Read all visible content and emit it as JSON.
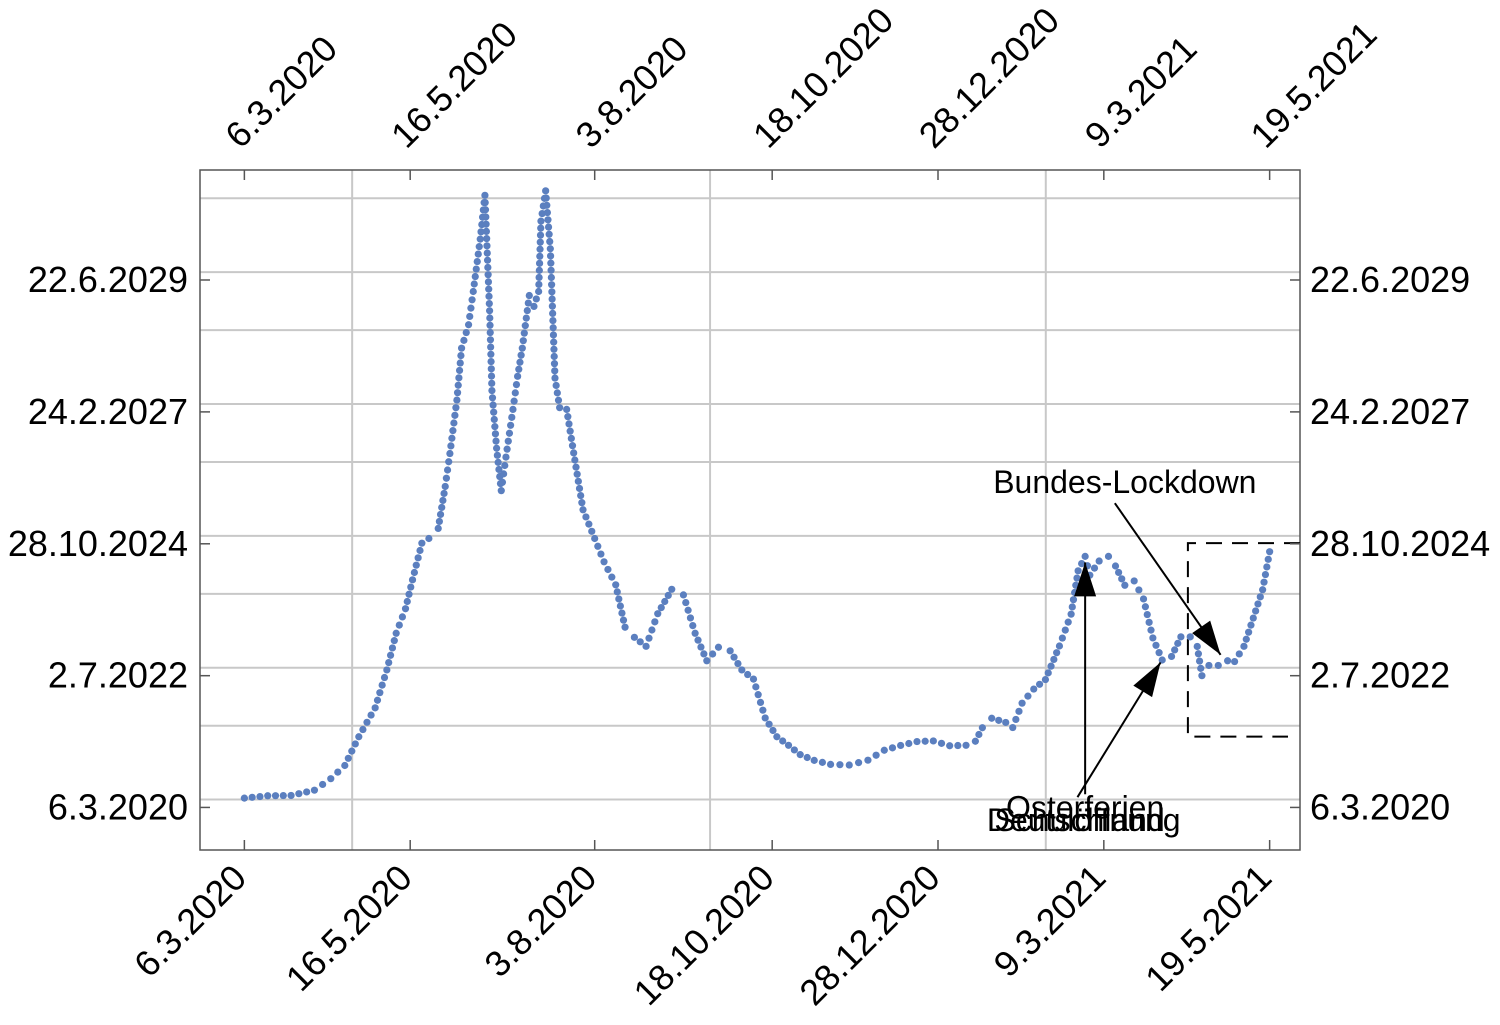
{
  "chart_data": {
    "type": "scatter",
    "title": "",
    "xlabel": "",
    "ylabel": "",
    "marker_color": "#5b7fbf",
    "grid": true,
    "x_ticks": [
      "6.3.2020",
      "16.5.2020",
      "3.8.2020",
      "18.10.2020",
      "28.12.2020",
      "9.3.2021",
      "19.5.2021"
    ],
    "x_ticks_top": [
      "6.3.2020",
      "16.5.2020",
      "3.8.2020",
      "18.10.2020",
      "28.12.2020",
      "9.3.2021",
      "19.5.2021"
    ],
    "y_ticks": [
      "6.3.2020",
      "2.7.2022",
      "28.10.2024",
      "24.2.2027",
      "22.6.2029"
    ],
    "y_ticks_right": [
      "6.3.2020",
      "2.7.2022",
      "28.10.2024",
      "24.2.2027",
      "22.6.2029"
    ],
    "xlim": [
      "2020-02-16",
      "2021-06-01"
    ],
    "ylim": [
      "2019-06-06",
      "2031-05-31"
    ],
    "series": [
      {
        "points": [
          [
            "2020-03-06",
            "2020-05-05"
          ],
          [
            "2020-03-16",
            "2020-05-20"
          ],
          [
            "2020-03-26",
            "2020-05-22"
          ],
          [
            "2020-04-05",
            "2020-06-25"
          ],
          [
            "2020-04-12",
            "2020-09-07"
          ],
          [
            "2020-04-18",
            "2020-12-01"
          ],
          [
            "2020-04-24",
            "2021-06-04"
          ],
          [
            "2020-05-01",
            "2021-12-07"
          ],
          [
            "2020-05-06",
            "2022-08-08"
          ],
          [
            "2020-05-10",
            "2023-04-01"
          ],
          [
            "2020-05-14",
            "2023-09-06"
          ],
          [
            "2020-05-17",
            "2024-03-10"
          ],
          [
            "2020-05-21",
            "2024-11-01"
          ],
          [
            "2020-05-24",
            "2024-12-01"
          ],
          [
            "2020-05-28",
            "2025-02-04"
          ],
          [
            "2020-05-31",
            "2025-11-01"
          ],
          [
            "2020-06-02",
            "2026-06-01"
          ],
          [
            "2020-06-05",
            "2027-05-11"
          ],
          [
            "2020-06-07",
            "2028-04-09"
          ],
          [
            "2020-06-10",
            "2028-09-07"
          ],
          [
            "2020-06-12",
            "2029-04-09"
          ],
          [
            "2020-06-15",
            "2030-03-12"
          ],
          [
            "2020-06-17",
            "2030-12-19"
          ],
          [
            "2020-06-19",
            "2028-12-06"
          ],
          [
            "2020-06-20",
            "2027-07-11"
          ],
          [
            "2020-06-22",
            "2026-07-05"
          ],
          [
            "2020-06-24",
            "2025-10-05"
          ],
          [
            "2020-06-26",
            "2026-05-09"
          ],
          [
            "2020-06-29",
            "2027-03-12"
          ],
          [
            "2020-07-01",
            "2027-10-11"
          ],
          [
            "2020-07-03",
            "2028-04-09"
          ],
          [
            "2020-07-06",
            "2029-03-14"
          ],
          [
            "2020-07-08",
            "2029-01-03"
          ],
          [
            "2020-07-10",
            "2029-04-09"
          ],
          [
            "2020-07-11",
            "2030-07-06"
          ],
          [
            "2020-07-13",
            "2031-01-17"
          ],
          [
            "2020-07-15",
            "2030-01-09"
          ],
          [
            "2020-07-17",
            "2027-09-30"
          ],
          [
            "2020-07-19",
            "2027-03-23"
          ],
          [
            "2020-07-22",
            "2027-03-12"
          ],
          [
            "2020-07-25",
            "2026-06-05"
          ],
          [
            "2020-07-29",
            "2025-06-04"
          ],
          [
            "2020-08-03",
            "2024-12-01"
          ],
          [
            "2020-08-07",
            "2024-07-04"
          ],
          [
            "2020-08-12",
            "2024-02-07"
          ],
          [
            "2020-08-16",
            "2023-05-10"
          ],
          [
            "2020-08-20",
            "2023-03-06"
          ],
          [
            "2020-08-25",
            "2023-01-07"
          ],
          [
            "2020-08-30",
            "2023-08-05"
          ],
          [
            "2020-09-05",
            "2024-01-09"
          ],
          [
            "2020-09-10",
            "2023-12-04"
          ],
          [
            "2020-09-15",
            "2023-04-01"
          ],
          [
            "2020-09-20",
            "2022-10-06"
          ],
          [
            "2020-09-25",
            "2023-01-01"
          ],
          [
            "2020-09-30",
            "2022-12-09"
          ],
          [
            "2020-10-05",
            "2022-08-08"
          ],
          [
            "2020-10-10",
            "2022-06-10"
          ],
          [
            "2020-10-15",
            "2021-10-03"
          ],
          [
            "2020-10-20",
            "2021-06-04"
          ],
          [
            "2020-10-25",
            "2021-04-10"
          ],
          [
            "2020-10-30",
            "2021-02-09"
          ],
          [
            "2020-11-05",
            "2021-01-03"
          ],
          [
            "2020-11-12",
            "2020-12-08"
          ],
          [
            "2020-11-20",
            "2020-12-04"
          ],
          [
            "2020-11-28",
            "2021-01-04"
          ],
          [
            "2020-12-05",
            "2021-03-09"
          ],
          [
            "2020-12-12",
            "2021-04-09"
          ],
          [
            "2020-12-19",
            "2021-05-04"
          ],
          [
            "2020-12-26",
            "2021-05-08"
          ],
          [
            "2021-01-02",
            "2021-04-07"
          ],
          [
            "2021-01-09",
            "2021-04-10"
          ],
          [
            "2021-01-13",
            "2021-05-06"
          ],
          [
            "2021-01-16",
            "2021-08-01"
          ],
          [
            "2021-01-20",
            "2021-10-01"
          ],
          [
            "2021-01-26",
            "2021-09-04"
          ],
          [
            "2021-01-29",
            "2021-08-02"
          ],
          [
            "2021-02-02",
            "2022-01-06"
          ],
          [
            "2021-02-07",
            "2022-04-07"
          ],
          [
            "2021-02-12",
            "2022-06-07"
          ],
          [
            "2021-02-18",
            "2023-01-09"
          ],
          [
            "2021-02-23",
            "2023-08-02"
          ],
          [
            "2021-02-26",
            "2024-05-07"
          ],
          [
            "2021-03-01",
            "2024-08-08"
          ],
          [
            "2021-03-03",
            "2024-04-09"
          ],
          [
            "2021-03-07",
            "2024-07-09"
          ],
          [
            "2021-03-11",
            "2024-08-08"
          ],
          [
            "2021-03-14",
            "2024-06-07"
          ],
          [
            "2021-03-18",
            "2024-02-04"
          ],
          [
            "2021-03-22",
            "2024-03-03"
          ],
          [
            "2021-03-26",
            "2023-11-08"
          ],
          [
            "2021-03-30",
            "2023-03-02"
          ],
          [
            "2021-04-03",
            "2022-10-11"
          ],
          [
            "2021-04-07",
            "2022-11-03"
          ],
          [
            "2021-04-11",
            "2023-03-09"
          ],
          [
            "2021-04-15",
            "2023-03-09"
          ],
          [
            "2021-04-18",
            "2023-01-06"
          ],
          [
            "2021-04-20",
            "2022-07-02"
          ],
          [
            "2021-04-23",
            "2022-09-06"
          ],
          [
            "2021-04-27",
            "2022-09-06"
          ],
          [
            "2021-05-01",
            "2022-10-06"
          ],
          [
            "2021-05-04",
            "2022-10-01"
          ],
          [
            "2021-05-08",
            "2023-01-07"
          ],
          [
            "2021-05-12",
            "2023-07-08"
          ],
          [
            "2021-05-16",
            "2024-01-06"
          ],
          [
            "2021-05-19",
            "2024-09-07"
          ]
        ]
      }
    ],
    "annotations": [
      {
        "text": "Bundes-Lockdown",
        "x": "2021-04-28",
        "y": "2022-10-06",
        "label_x": "2021-03-18",
        "label_y": "2025-09-19"
      },
      {
        "text": "Osterferien",
        "x": "2021-03-01",
        "y": "2024-08-08",
        "label_x": "2021-03-01",
        "label_y": "2019-12-27"
      },
      {
        "text": "Deutschland",
        "x": "2021-03-01",
        "y": "2024-08-08",
        "label_x": "2021-02-25",
        "label_y": "2019-10-05"
      },
      {
        "text": "Schulöffnung",
        "x": "2021-04-04",
        "y": "2022-11-03",
        "label_x": "2021-03-02",
        "label_y": "2019-10-05"
      }
    ],
    "highlight_box": {
      "x_from": "2021-04-14",
      "x_to": "2021-06-01",
      "y_from": "2021-06-05",
      "y_to": "2024-11-01"
    }
  }
}
